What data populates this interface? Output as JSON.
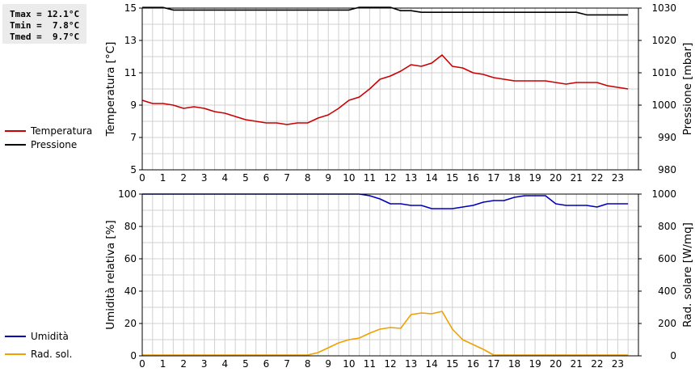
{
  "stats": {
    "tmax": "Tmax = 12.1°C",
    "tmin": "Tmin =  7.8°C",
    "tmed": "Tmed =  9.7°C"
  },
  "legend_top": [
    {
      "label": "Temperatura",
      "color": "#cc0000"
    },
    {
      "label": "Pressione",
      "color": "#000000"
    }
  ],
  "legend_bottom": [
    {
      "label": "Umidità",
      "color": "#0000bb"
    },
    {
      "label": "Rad. sol.",
      "color": "#f0a000"
    }
  ],
  "chart_data": [
    {
      "type": "line",
      "x_ticks": [
        "0",
        "1",
        "2",
        "3",
        "4",
        "5",
        "6",
        "7",
        "8",
        "9",
        "10",
        "11",
        "12",
        "13",
        "14",
        "15",
        "16",
        "17",
        "18",
        "19",
        "20",
        "21",
        "22",
        "23"
      ],
      "xlim": [
        0,
        24
      ],
      "ylabel": "Temperatura [°C]",
      "ylim": [
        5,
        15
      ],
      "y_ticks": [
        5,
        7,
        9,
        11,
        13,
        15
      ],
      "y2label": "Pressione [mbar]",
      "y2lim": [
        980,
        1030
      ],
      "y2_ticks": [
        980,
        990,
        1000,
        1010,
        1020,
        1030
      ],
      "grid": true,
      "series": [
        {
          "name": "Temperatura",
          "axis": "left",
          "color": "#cc0000",
          "x": [
            0,
            0.5,
            1,
            1.5,
            2,
            2.5,
            3,
            3.5,
            4,
            4.5,
            5,
            5.5,
            6,
            6.5,
            7,
            7.5,
            8,
            8.5,
            9,
            9.5,
            10,
            10.5,
            11,
            11.5,
            12,
            12.5,
            13,
            13.5,
            14,
            14.5,
            15,
            15.5,
            16,
            16.5,
            17,
            17.5,
            18,
            18.5,
            19,
            19.5,
            20,
            20.5,
            21,
            21.5,
            22,
            22.5,
            23,
            23.5
          ],
          "values": [
            9.3,
            9.1,
            9.1,
            9.0,
            8.8,
            8.9,
            8.8,
            8.6,
            8.5,
            8.3,
            8.1,
            8.0,
            7.9,
            7.9,
            7.8,
            7.9,
            7.9,
            8.2,
            8.4,
            8.8,
            9.3,
            9.5,
            10.0,
            10.6,
            10.8,
            11.1,
            11.5,
            11.4,
            11.6,
            12.1,
            11.4,
            11.3,
            11.0,
            10.9,
            10.7,
            10.6,
            10.5,
            10.5,
            10.5,
            10.5,
            10.4,
            10.3,
            10.4,
            10.4,
            10.4,
            10.2,
            10.1,
            10.0
          ]
        },
        {
          "name": "Pressione",
          "axis": "right",
          "color": "#000000",
          "x": [
            0,
            1,
            1.5,
            2,
            3,
            4,
            5,
            6,
            7,
            8,
            9,
            10,
            10.5,
            11,
            12,
            12.5,
            13,
            13.5,
            14,
            15,
            16,
            17,
            18,
            19,
            20,
            21,
            21.5,
            22,
            23,
            23.5
          ],
          "values": [
            1030.2,
            1030.2,
            1029.4,
            1029.4,
            1029.4,
            1029.4,
            1029.4,
            1029.4,
            1029.4,
            1029.4,
            1029.4,
            1029.4,
            1030.3,
            1030.3,
            1030.3,
            1029.2,
            1029.2,
            1028.7,
            1028.7,
            1028.7,
            1028.7,
            1028.7,
            1028.7,
            1028.7,
            1028.7,
            1028.7,
            1027.9,
            1027.9,
            1027.9,
            1027.9
          ]
        }
      ]
    },
    {
      "type": "line",
      "x_ticks": [
        "0",
        "1",
        "2",
        "3",
        "4",
        "5",
        "6",
        "7",
        "8",
        "9",
        "10",
        "11",
        "12",
        "13",
        "14",
        "15",
        "16",
        "17",
        "18",
        "19",
        "20",
        "21",
        "22",
        "23"
      ],
      "xlim": [
        0,
        24
      ],
      "ylabel": "Umidità relativa [%]",
      "ylim": [
        0,
        100
      ],
      "y_ticks": [
        0,
        20,
        40,
        60,
        80,
        100
      ],
      "y2label": "Rad. solare [W/mq]",
      "y2lim": [
        0,
        1000
      ],
      "y2_ticks": [
        0,
        200,
        400,
        600,
        800,
        1000
      ],
      "grid": true,
      "series": [
        {
          "name": "Umidità",
          "axis": "left",
          "color": "#0000bb",
          "x": [
            0,
            1,
            2,
            3,
            4,
            5,
            6,
            7,
            8,
            9,
            10,
            10.5,
            11,
            11.5,
            12,
            12.5,
            13,
            13.5,
            14,
            14.5,
            15,
            15.5,
            16,
            16.5,
            17,
            17.5,
            18,
            18.5,
            19,
            19.5,
            20,
            20.5,
            21,
            21.5,
            22,
            22.5,
            23,
            23.5
          ],
          "values": [
            100,
            100,
            100,
            100,
            100,
            100,
            100,
            100,
            100,
            100,
            100,
            100,
            99,
            97,
            94,
            94,
            93,
            93,
            91,
            91,
            91,
            92,
            93,
            95,
            96,
            96,
            98,
            99,
            99,
            99,
            94,
            93,
            93,
            93,
            92,
            94,
            94,
            94
          ]
        },
        {
          "name": "Rad. sol.",
          "axis": "right",
          "color": "#f0a000",
          "x": [
            0,
            1,
            2,
            3,
            4,
            5,
            6,
            7,
            8,
            8.5,
            9,
            9.5,
            10,
            10.5,
            11,
            11.5,
            12,
            12.5,
            13,
            13.5,
            14,
            14.5,
            15,
            15.5,
            16,
            16.5,
            17,
            17.5,
            18,
            19,
            20,
            21,
            22,
            23,
            23.5
          ],
          "values": [
            5,
            5,
            5,
            5,
            5,
            5,
            5,
            5,
            5,
            20,
            50,
            80,
            100,
            110,
            140,
            165,
            175,
            170,
            255,
            265,
            260,
            275,
            165,
            100,
            70,
            40,
            5,
            5,
            5,
            5,
            5,
            5,
            5,
            5,
            5
          ]
        }
      ]
    }
  ]
}
